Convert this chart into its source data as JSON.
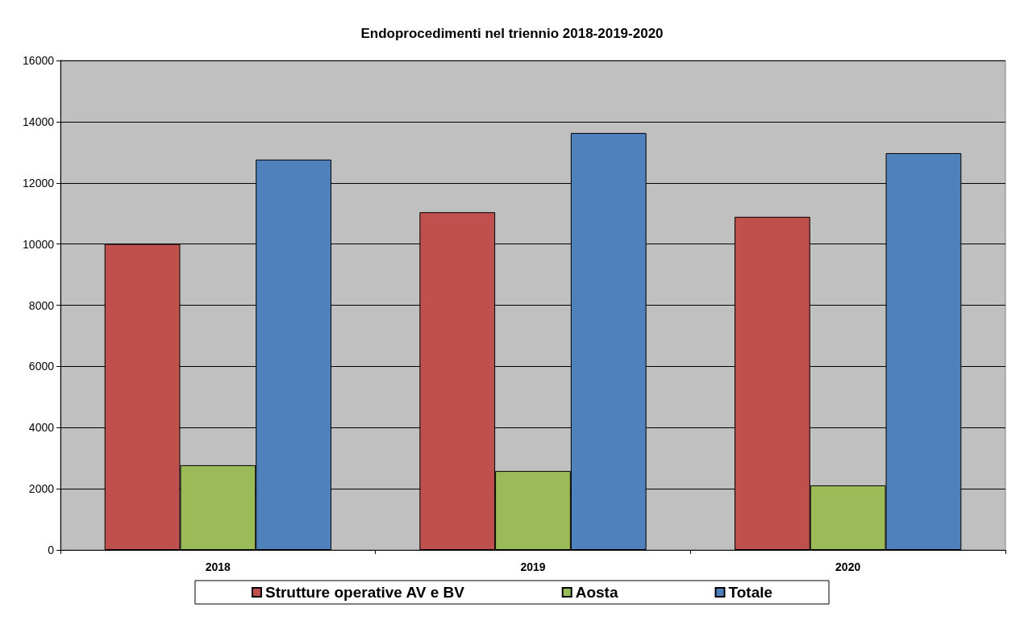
{
  "chart_data": {
    "type": "bar",
    "title": "Endoprocedimenti nel triennio 2018-2019-2020",
    "categories": [
      "2018",
      "2019",
      "2020"
    ],
    "series": [
      {
        "name": "Strutture operative AV e BV",
        "color": "#c0504d",
        "values": [
          10000,
          11040,
          10890
        ]
      },
      {
        "name": "Aosta",
        "color": "#9bbb59",
        "values": [
          2770,
          2580,
          2110
        ]
      },
      {
        "name": "Totale",
        "color": "#4f81bd",
        "values": [
          12760,
          13630,
          12970
        ]
      }
    ],
    "ylim": [
      0,
      16000
    ],
    "yticks": [
      0,
      2000,
      4000,
      6000,
      8000,
      10000,
      12000,
      14000,
      16000
    ],
    "grid": "y",
    "legend": "bottom"
  }
}
